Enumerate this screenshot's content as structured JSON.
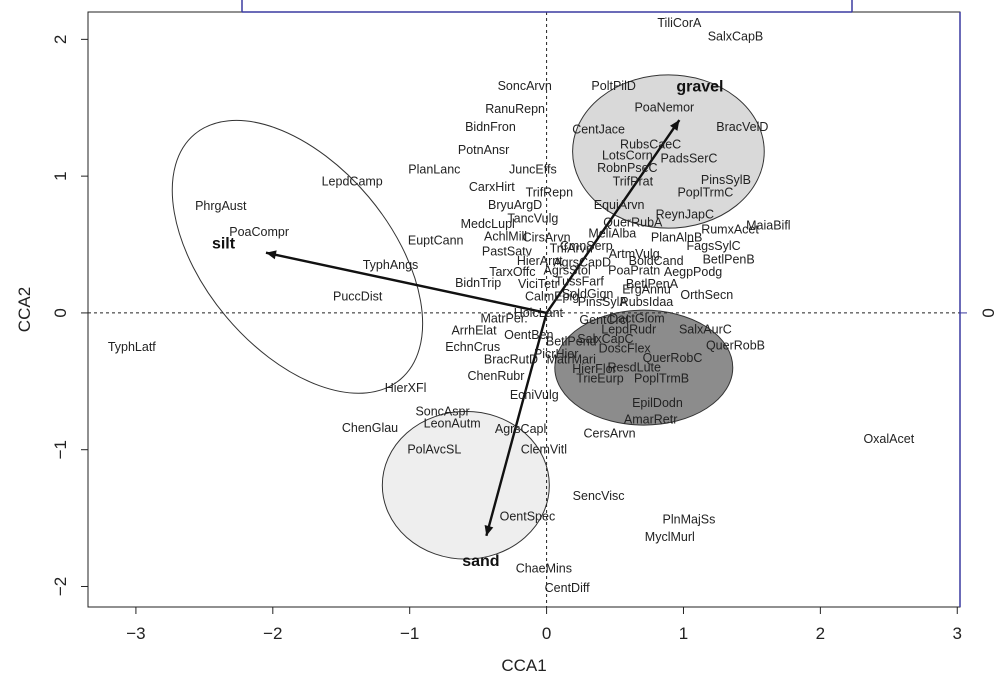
{
  "chart_data": {
    "type": "scatter",
    "title": "",
    "xlabel": "CCA1",
    "ylabel": "CCA2",
    "xlim": [
      -3.35,
      3.02
    ],
    "ylim": [
      -2.15,
      2.2
    ],
    "xticks": [
      "-3",
      "-2",
      "-1",
      "0",
      "1",
      "2",
      "3"
    ],
    "yticks": [
      "-2",
      "-1",
      "0",
      "1",
      "2"
    ],
    "right_ticks": [
      "0"
    ],
    "zero_lines": true,
    "grid": false,
    "species": [
      {
        "label": "TiliCorA",
        "x": 0.97,
        "y": 2.12
      },
      {
        "label": "SalxCapB",
        "x": 1.38,
        "y": 2.02
      },
      {
        "label": "SoncArvn",
        "x": -0.16,
        "y": 1.66
      },
      {
        "label": "PoltPilD",
        "x": 0.49,
        "y": 1.66
      },
      {
        "label": "RanuRepn",
        "x": -0.23,
        "y": 1.49
      },
      {
        "label": "PoaNemor",
        "x": 0.86,
        "y": 1.5
      },
      {
        "label": "BidnFron",
        "x": -0.41,
        "y": 1.36
      },
      {
        "label": "CentJace",
        "x": 0.38,
        "y": 1.34
      },
      {
        "label": "BracVelD",
        "x": 1.43,
        "y": 1.36
      },
      {
        "label": "RubsCaeC",
        "x": 0.76,
        "y": 1.23
      },
      {
        "label": "PotnAnsr",
        "x": -0.46,
        "y": 1.19
      },
      {
        "label": "LotsCorn",
        "x": 0.59,
        "y": 1.15
      },
      {
        "label": "PadsSerC",
        "x": 1.04,
        "y": 1.13
      },
      {
        "label": "PlanLanc",
        "x": -0.82,
        "y": 1.05
      },
      {
        "label": "JuncEffs",
        "x": -0.1,
        "y": 1.05
      },
      {
        "label": "RobnPseC",
        "x": 0.59,
        "y": 1.06
      },
      {
        "label": "LepdCamp",
        "x": -1.42,
        "y": 0.96
      },
      {
        "label": "TrifPrat",
        "x": 0.63,
        "y": 0.96
      },
      {
        "label": "PinsSylB",
        "x": 1.31,
        "y": 0.97
      },
      {
        "label": "CarxHirt",
        "x": -0.4,
        "y": 0.92
      },
      {
        "label": "TrifRepn",
        "x": 0.02,
        "y": 0.88
      },
      {
        "label": "PoplTrmC",
        "x": 1.16,
        "y": 0.88
      },
      {
        "label": "BryuArgD",
        "x": -0.23,
        "y": 0.79
      },
      {
        "label": "EquiArvn",
        "x": 0.53,
        "y": 0.79
      },
      {
        "label": "PhrgAust",
        "x": -2.38,
        "y": 0.78
      },
      {
        "label": "ReynJapC",
        "x": 1.01,
        "y": 0.72
      },
      {
        "label": "TancVulg",
        "x": -0.1,
        "y": 0.69
      },
      {
        "label": "QuerRubA",
        "x": 0.63,
        "y": 0.66
      },
      {
        "label": "MedcLupl",
        "x": -0.43,
        "y": 0.65
      },
      {
        "label": "RumxAcet",
        "x": 1.34,
        "y": 0.61
      },
      {
        "label": "MaiaBifl",
        "x": 1.62,
        "y": 0.64
      },
      {
        "label": "PoaCompr",
        "x": -2.1,
        "y": 0.59
      },
      {
        "label": "MeliAlba",
        "x": 0.48,
        "y": 0.58
      },
      {
        "label": "AchlMill",
        "x": -0.3,
        "y": 0.56
      },
      {
        "label": "CirsArvn",
        "x": 0.0,
        "y": 0.55
      },
      {
        "label": "EuptCann",
        "x": -0.81,
        "y": 0.53
      },
      {
        "label": "PlanAlnB",
        "x": 0.95,
        "y": 0.55
      },
      {
        "label": "FagsSylC",
        "x": 1.22,
        "y": 0.49
      },
      {
        "label": "silt_label_ph",
        "x": -2.36,
        "y": 0.48,
        "hidden": true
      },
      {
        "label": "PastSatv",
        "x": -0.29,
        "y": 0.45
      },
      {
        "label": "TrifArvn",
        "x": 0.18,
        "y": 0.47
      },
      {
        "label": "ArtmVulg",
        "x": 0.64,
        "y": 0.43
      },
      {
        "label": "CmnSerp",
        "x": 0.29,
        "y": 0.49
      },
      {
        "label": "HierArnt",
        "x": -0.05,
        "y": 0.38
      },
      {
        "label": "AgrsCapD",
        "x": 0.26,
        "y": 0.37
      },
      {
        "label": "BoldCand",
        "x": 0.8,
        "y": 0.38
      },
      {
        "label": "BetlPenB",
        "x": 1.33,
        "y": 0.39
      },
      {
        "label": "TyphAngs",
        "x": -1.14,
        "y": 0.35
      },
      {
        "label": "TarxOffc",
        "x": -0.25,
        "y": 0.3
      },
      {
        "label": "AgrsStol",
        "x": 0.15,
        "y": 0.31
      },
      {
        "label": "PoaPratn",
        "x": 0.64,
        "y": 0.31
      },
      {
        "label": "AegpPodg",
        "x": 1.07,
        "y": 0.3
      },
      {
        "label": "BidnTrip",
        "x": -0.5,
        "y": 0.22
      },
      {
        "label": "ViciTetr",
        "x": -0.06,
        "y": 0.21
      },
      {
        "label": "TussFarf",
        "x": 0.24,
        "y": 0.23
      },
      {
        "label": "BetlPenA",
        "x": 0.77,
        "y": 0.21
      },
      {
        "label": "PuccDist",
        "x": -1.38,
        "y": 0.12
      },
      {
        "label": "CalmEpig",
        "x": 0.04,
        "y": 0.12
      },
      {
        "label": "SoldGign",
        "x": 0.3,
        "y": 0.14
      },
      {
        "label": "OrthSecn",
        "x": 1.17,
        "y": 0.13
      },
      {
        "label": "ErgAnnu",
        "x": 0.73,
        "y": 0.17
      },
      {
        "label": "PinsSylA",
        "x": 0.41,
        "y": 0.08
      },
      {
        "label": "RubsIdaa",
        "x": 0.73,
        "y": 0.08
      },
      {
        "label": "HolcLant",
        "x": -0.06,
        "y": 0.0
      },
      {
        "label": "DactGlom",
        "x": 0.66,
        "y": -0.04
      },
      {
        "label": "GentCrcl",
        "x": 0.42,
        "y": -0.05
      },
      {
        "label": "MatrPer.",
        "x": -0.31,
        "y": -0.04
      },
      {
        "label": "LepdRudr",
        "x": 0.6,
        "y": -0.12
      },
      {
        "label": "SalxAurC",
        "x": 1.16,
        "y": -0.12
      },
      {
        "label": "ArrhElat",
        "x": -0.53,
        "y": -0.13
      },
      {
        "label": "OentBen",
        "x": -0.13,
        "y": -0.16
      },
      {
        "label": "SalxCapC",
        "x": 0.43,
        "y": -0.19
      },
      {
        "label": "QuerRobB",
        "x": 1.38,
        "y": -0.24
      },
      {
        "label": "EchnCrus",
        "x": -0.54,
        "y": -0.25
      },
      {
        "label": "BetlPend",
        "x": 0.18,
        "y": -0.21
      },
      {
        "label": "DoscFlex",
        "x": 0.57,
        "y": -0.26
      },
      {
        "label": "PicrHier",
        "x": 0.07,
        "y": -0.3
      },
      {
        "label": "QuerRobC",
        "x": 0.92,
        "y": -0.33
      },
      {
        "label": "BracRutD",
        "x": -0.26,
        "y": -0.34
      },
      {
        "label": "MatrMari",
        "x": 0.18,
        "y": -0.34
      },
      {
        "label": "HierFlor",
        "x": 0.35,
        "y": -0.41
      },
      {
        "label": "ResdLute",
        "x": 0.64,
        "y": -0.4
      },
      {
        "label": "ChenRubr",
        "x": -0.37,
        "y": -0.46
      },
      {
        "label": "TrieEurp",
        "x": 0.39,
        "y": -0.48
      },
      {
        "label": "PoplTrmB",
        "x": 0.84,
        "y": -0.48
      },
      {
        "label": "HierXFl",
        "x": -1.03,
        "y": -0.55
      },
      {
        "label": "EchiVulg",
        "x": -0.09,
        "y": -0.6
      },
      {
        "label": "EpilDodn",
        "x": 0.81,
        "y": -0.66
      },
      {
        "label": "SoncAspr",
        "x": -0.76,
        "y": -0.72
      },
      {
        "label": "AmarRetr",
        "x": 0.76,
        "y": -0.78
      },
      {
        "label": "LeonAutm",
        "x": -0.69,
        "y": -0.81
      },
      {
        "label": "ChenGlau",
        "x": -1.29,
        "y": -0.84
      },
      {
        "label": "AgrsCapl",
        "x": -0.19,
        "y": -0.85
      },
      {
        "label": "CersArvn",
        "x": 0.46,
        "y": -0.88
      },
      {
        "label": "OxalAcet",
        "x": 2.5,
        "y": -0.92
      },
      {
        "label": "PolAvcSL",
        "x": -0.82,
        "y": -1.0
      },
      {
        "label": "ClemVitl",
        "x": -0.02,
        "y": -1.0
      },
      {
        "label": "SencVisc",
        "x": 0.38,
        "y": -1.34
      },
      {
        "label": "OentSpec",
        "x": -0.14,
        "y": -1.49
      },
      {
        "label": "PlnMajSs",
        "x": 1.04,
        "y": -1.51
      },
      {
        "label": "MyclMurl",
        "x": 0.9,
        "y": -1.64
      },
      {
        "label": "ChaeMins",
        "x": -0.02,
        "y": -1.87
      },
      {
        "label": "CentDiff",
        "x": 0.15,
        "y": -2.01
      },
      {
        "label": "TyphLatf",
        "x": -3.03,
        "y": -0.25
      }
    ],
    "arrows": [
      {
        "label": "gravel",
        "x": 0.97,
        "y": 1.41,
        "label_x": 1.12,
        "label_y": 1.62
      },
      {
        "label": "silt",
        "x": -2.05,
        "y": 0.44,
        "label_x": -2.36,
        "label_y": 0.47
      },
      {
        "label": "sand",
        "x": -0.44,
        "y": -1.63,
        "label_x": -0.48,
        "label_y": -1.85
      }
    ],
    "ellipses": [
      {
        "group": "gravel",
        "cx": 0.89,
        "cy": 1.18,
        "rx": 0.7,
        "ry": 0.56,
        "angle": 0,
        "fill": "#d9d9d9"
      },
      {
        "group": "silt",
        "cx": -1.82,
        "cy": 0.41,
        "rx": 0.68,
        "ry": 1.17,
        "angle": -40,
        "fill": "none"
      },
      {
        "group": "sand",
        "cx": -0.59,
        "cy": -1.26,
        "rx": 0.61,
        "ry": 0.54,
        "angle": 0,
        "fill": "#eeeeee"
      },
      {
        "group": "sand-gravel-mixed",
        "cx": 0.71,
        "cy": -0.4,
        "rx": 0.65,
        "ry": 0.42,
        "angle": 0,
        "fill": "#8c8c8c"
      }
    ]
  }
}
